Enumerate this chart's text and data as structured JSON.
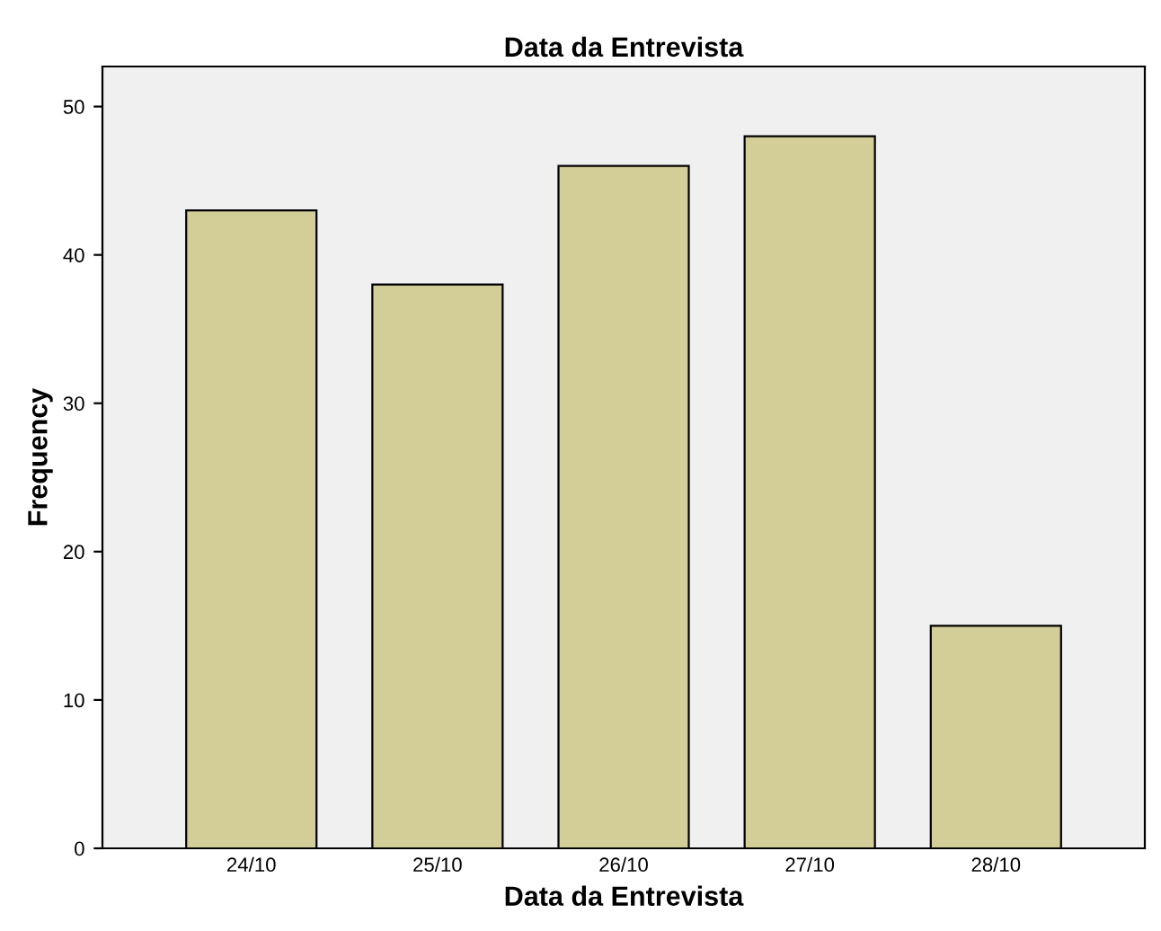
{
  "chart_data": {
    "type": "bar",
    "title": "Data da Entrevista",
    "xlabel": "Data da Entrevista",
    "ylabel": "Frequency",
    "categories": [
      "24/10",
      "25/10",
      "26/10",
      "27/10",
      "28/10"
    ],
    "values": [
      43,
      38,
      46,
      48,
      15
    ],
    "color": "#d3ce97",
    "ylim": [
      0,
      52.7
    ],
    "yticks": [
      0,
      10,
      20,
      30,
      40,
      50
    ],
    "grid": false
  }
}
